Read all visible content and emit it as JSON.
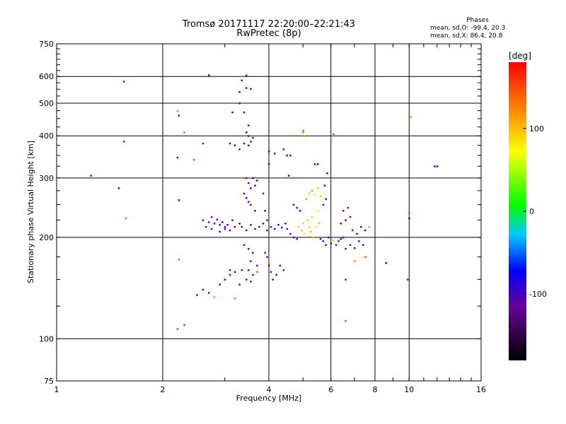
{
  "chart_data": {
    "type": "scatter",
    "title": "Tromsø 20171117 22:20:00–22:21:43",
    "subtitle": "RwPretec (8p)",
    "phases": {
      "heading": "Phases",
      "line_o": "mean, sd,O: -99.4, 20.3",
      "line_x": "mean, sd,X:  86.4, 20.8"
    },
    "xlabel": "Frequency [MHz]",
    "ylabel": "Stationary phase Virtual Height [km]",
    "x_scale": "log",
    "y_scale": "log",
    "xlim": [
      1,
      16
    ],
    "ylim": [
      75,
      750
    ],
    "x_ticks": [
      {
        "v": 1,
        "label": "1"
      },
      {
        "v": 2,
        "label": "2"
      },
      {
        "v": 4,
        "label": "4"
      },
      {
        "v": 6,
        "label": "6"
      },
      {
        "v": 8,
        "label": "8"
      },
      {
        "v": 10,
        "label": "10"
      },
      {
        "v": 16,
        "label": "16"
      }
    ],
    "y_ticks": [
      {
        "v": 75,
        "label": "75"
      },
      {
        "v": 100,
        "label": "100"
      },
      {
        "v": 200,
        "label": "200"
      },
      {
        "v": 300,
        "label": "300"
      },
      {
        "v": 400,
        "label": "400"
      },
      {
        "v": 500,
        "label": "500"
      },
      {
        "v": 600,
        "label": "600"
      },
      {
        "v": 750,
        "label": "750"
      }
    ],
    "grid_x": [
      2,
      4,
      6,
      8,
      10
    ],
    "grid_y": [
      100,
      200,
      300,
      400,
      500,
      600
    ],
    "colorbar": {
      "label": "[deg]",
      "range": [
        -180,
        180
      ],
      "ticks": [
        {
          "v": 100,
          "label": "100"
        },
        {
          "v": 0,
          "label": "0"
        },
        {
          "v": -100,
          "label": "-100"
        }
      ]
    },
    "points": [
      [
        1.25,
        305,
        -100
      ],
      [
        1.5,
        280,
        -100
      ],
      [
        1.55,
        580,
        -110
      ],
      [
        1.55,
        385,
        -110
      ],
      [
        1.57,
        228,
        140
      ],
      [
        2.2,
        475,
        120
      ],
      [
        2.22,
        460,
        -120
      ],
      [
        2.2,
        345,
        -100
      ],
      [
        2.22,
        258,
        -120
      ],
      [
        2.22,
        172,
        140
      ],
      [
        2.2,
        107,
        150
      ],
      [
        2.3,
        110,
        -50
      ],
      [
        2.3,
        410,
        140
      ],
      [
        2.45,
        340,
        150
      ],
      [
        2.6,
        380,
        -110
      ],
      [
        2.7,
        606,
        -120
      ],
      [
        2.6,
        225,
        -110
      ],
      [
        2.7,
        222,
        -110
      ],
      [
        2.8,
        220,
        -110
      ],
      [
        2.9,
        218,
        -110
      ],
      [
        3.0,
        215,
        -100
      ],
      [
        3.1,
        210,
        -110
      ],
      [
        2.75,
        230,
        -110
      ],
      [
        2.85,
        226,
        -100
      ],
      [
        2.95,
        222,
        -110
      ],
      [
        3.05,
        218,
        -110
      ],
      [
        3.2,
        215,
        -100
      ],
      [
        3.3,
        220,
        -110
      ],
      [
        2.65,
        215,
        -110
      ],
      [
        2.75,
        212,
        -110
      ],
      [
        2.9,
        208,
        -100
      ],
      [
        3.0,
        212,
        -110
      ],
      [
        3.15,
        225,
        -100
      ],
      [
        2.5,
        135,
        -110
      ],
      [
        2.6,
        140,
        -100
      ],
      [
        2.7,
        137,
        -110
      ],
      [
        2.9,
        145,
        -100
      ],
      [
        3.0,
        150,
        -110
      ],
      [
        3.1,
        155,
        -110
      ],
      [
        2.8,
        133,
        120
      ],
      [
        3.2,
        132,
        130
      ],
      [
        3.1,
        160,
        -110
      ],
      [
        3.2,
        158,
        -100
      ],
      [
        3.3,
        145,
        -110
      ],
      [
        3.35,
        160,
        -120
      ],
      [
        3.1,
        380,
        -110
      ],
      [
        3.2,
        375,
        -120
      ],
      [
        3.3,
        365,
        -110
      ],
      [
        3.4,
        380,
        -100
      ],
      [
        3.5,
        375,
        -110
      ],
      [
        3.55,
        385,
        -120
      ],
      [
        3.15,
        470,
        -130
      ],
      [
        3.3,
        500,
        -120
      ],
      [
        3.4,
        470,
        -130
      ],
      [
        3.3,
        540,
        -110
      ],
      [
        3.45,
        555,
        -110
      ],
      [
        3.55,
        552,
        -110
      ],
      [
        3.35,
        585,
        -120
      ],
      [
        3.45,
        605,
        -110
      ],
      [
        3.5,
        430,
        -110
      ],
      [
        3.45,
        410,
        -100
      ],
      [
        3.5,
        400,
        -110
      ],
      [
        3.6,
        395,
        -110
      ],
      [
        3.45,
        300,
        -100
      ],
      [
        3.5,
        290,
        -110
      ],
      [
        3.55,
        280,
        -110
      ],
      [
        3.6,
        300,
        -100
      ],
      [
        3.65,
        285,
        -110
      ],
      [
        3.7,
        295,
        -100
      ],
      [
        3.4,
        270,
        -110
      ],
      [
        3.45,
        262,
        -100
      ],
      [
        3.5,
        255,
        -110
      ],
      [
        3.55,
        250,
        -110
      ],
      [
        3.65,
        240,
        -100
      ],
      [
        3.35,
        215,
        -110
      ],
      [
        3.45,
        210,
        -110
      ],
      [
        3.55,
        218,
        -110
      ],
      [
        3.65,
        212,
        -100
      ],
      [
        3.75,
        215,
        -110
      ],
      [
        3.85,
        220,
        -110
      ],
      [
        3.4,
        190,
        -110
      ],
      [
        3.5,
        185,
        -100
      ],
      [
        3.6,
        180,
        -110
      ],
      [
        3.55,
        170,
        -110
      ],
      [
        3.5,
        160,
        -100
      ],
      [
        3.45,
        150,
        -110
      ],
      [
        3.6,
        155,
        -110
      ],
      [
        3.55,
        148,
        -110
      ],
      [
        3.7,
        158,
        140
      ],
      [
        3.7,
        165,
        -110
      ],
      [
        3.9,
        180,
        -110
      ],
      [
        3.95,
        175,
        -110
      ],
      [
        4.0,
        165,
        -110
      ],
      [
        4.05,
        158,
        -100
      ],
      [
        4.1,
        150,
        -110
      ],
      [
        4.2,
        155,
        -100
      ],
      [
        4.3,
        165,
        -110
      ],
      [
        4.4,
        160,
        -110
      ],
      [
        3.85,
        270,
        -110
      ],
      [
        3.9,
        240,
        -100
      ],
      [
        3.95,
        225,
        -110
      ],
      [
        4.0,
        330,
        -110
      ],
      [
        4.0,
        360,
        -100
      ],
      [
        4.15,
        355,
        -110
      ],
      [
        3.95,
        210,
        -110
      ],
      [
        4.05,
        215,
        -110
      ],
      [
        4.15,
        212,
        -100
      ],
      [
        4.25,
        218,
        -110
      ],
      [
        4.35,
        214,
        -110
      ],
      [
        4.45,
        220,
        -100
      ],
      [
        4.5,
        212,
        -110
      ],
      [
        4.6,
        205,
        -110
      ],
      [
        4.7,
        200,
        -100
      ],
      [
        4.8,
        198,
        -110
      ],
      [
        4.4,
        365,
        -100
      ],
      [
        4.5,
        350,
        -100
      ],
      [
        4.6,
        350,
        -110
      ],
      [
        4.65,
        300,
        140
      ],
      [
        4.55,
        305,
        -90
      ],
      [
        4.7,
        250,
        -100
      ],
      [
        4.8,
        245,
        -110
      ],
      [
        4.9,
        240,
        -100
      ],
      [
        4.85,
        215,
        100
      ],
      [
        4.95,
        210,
        110
      ],
      [
        5.0,
        220,
        90
      ],
      [
        5.05,
        205,
        80
      ],
      [
        5.15,
        225,
        100
      ],
      [
        5.2,
        215,
        95
      ],
      [
        5.25,
        208,
        110
      ],
      [
        5.3,
        230,
        90
      ],
      [
        5.35,
        200,
        100
      ],
      [
        5.45,
        215,
        85
      ],
      [
        5.5,
        240,
        80
      ],
      [
        5.55,
        220,
        100
      ],
      [
        5.1,
        260,
        110
      ],
      [
        5.2,
        270,
        100
      ],
      [
        5.3,
        275,
        120
      ],
      [
        5.4,
        268,
        80
      ],
      [
        5.5,
        280,
        110
      ],
      [
        5.6,
        265,
        100
      ],
      [
        5.0,
        410,
        130
      ],
      [
        5.05,
        400,
        120
      ],
      [
        5.0,
        415,
        140
      ],
      [
        6.1,
        405,
        140
      ],
      [
        5.6,
        198,
        -100
      ],
      [
        5.7,
        195,
        -110
      ],
      [
        5.8,
        190,
        -110
      ],
      [
        5.9,
        200,
        -100
      ],
      [
        6.0,
        192,
        -110
      ],
      [
        6.1,
        196,
        90
      ],
      [
        6.2,
        190,
        -100
      ],
      [
        6.3,
        195,
        -110
      ],
      [
        6.4,
        198,
        -100
      ],
      [
        6.5,
        200,
        -110
      ],
      [
        5.7,
        250,
        -100
      ],
      [
        5.8,
        260,
        -110
      ],
      [
        5.75,
        285,
        -100
      ],
      [
        5.85,
        310,
        -110
      ],
      [
        5.5,
        330,
        -100
      ],
      [
        5.4,
        330,
        -90
      ],
      [
        6.4,
        220,
        -100
      ],
      [
        6.6,
        225,
        -110
      ],
      [
        6.8,
        230,
        -100
      ],
      [
        6.5,
        240,
        -110
      ],
      [
        6.7,
        245,
        -110
      ],
      [
        6.9,
        210,
        -110
      ],
      [
        7.1,
        205,
        -110
      ],
      [
        7.3,
        215,
        -100
      ],
      [
        7.5,
        210,
        -110
      ],
      [
        6.6,
        185,
        -110
      ],
      [
        6.8,
        190,
        -110
      ],
      [
        7.0,
        186,
        -100
      ],
      [
        7.2,
        195,
        -110
      ],
      [
        7.4,
        190,
        -110
      ],
      [
        7.0,
        170,
        130
      ],
      [
        7.5,
        175,
        150
      ],
      [
        7.7,
        215,
        120
      ],
      [
        6.6,
        150,
        -110
      ],
      [
        6.6,
        113,
        150
      ],
      [
        8.6,
        168,
        -140
      ],
      [
        9.9,
        150,
        -120
      ],
      [
        10.1,
        455,
        130
      ],
      [
        10.0,
        236,
        150
      ],
      [
        10.0,
        228,
        -70
      ],
      [
        11.8,
        325,
        -80
      ],
      [
        12.0,
        325,
        -70
      ]
    ]
  }
}
